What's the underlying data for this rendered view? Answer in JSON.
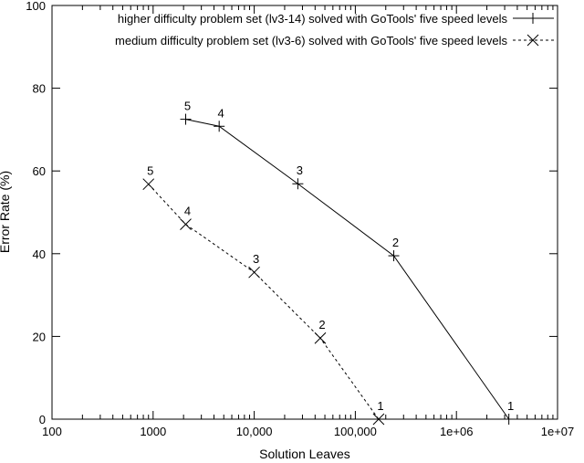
{
  "chart_data": {
    "type": "line",
    "xlabel": "Solution Leaves",
    "ylabel": "Error Rate (%)",
    "xscale": "log",
    "xlim": [
      100,
      10000000
    ],
    "ylim": [
      0,
      100
    ],
    "x_tick_labels": [
      "100",
      "1000",
      "10,000",
      "100,000",
      "1e+06",
      "1e+07"
    ],
    "x_tick_values": [
      100,
      1000,
      10000,
      100000,
      1000000,
      10000000
    ],
    "y_tick_labels": [
      "0",
      "20",
      "40",
      "60",
      "80",
      "100"
    ],
    "y_tick_values": [
      0,
      20,
      40,
      60,
      80,
      100
    ],
    "legend_position": "top-right",
    "series": [
      {
        "name": "higher difficulty problem set (lv3-14) solved with GoTools' five speed levels",
        "line_style": "solid",
        "marker": "plus",
        "points": [
          {
            "x": 2100,
            "y": 72.5,
            "label": "5"
          },
          {
            "x": 4500,
            "y": 70.8,
            "label": "4"
          },
          {
            "x": 27000,
            "y": 56.9,
            "label": "3"
          },
          {
            "x": 240000,
            "y": 39.5,
            "label": "2"
          },
          {
            "x": 3300000,
            "y": 0,
            "label": "1"
          }
        ]
      },
      {
        "name": "medium difficulty problem set (lv3-6) solved with GoTools' five speed levels",
        "line_style": "dashed",
        "marker": "x",
        "points": [
          {
            "x": 900,
            "y": 56.8,
            "label": "5"
          },
          {
            "x": 2100,
            "y": 47.1,
            "label": "4"
          },
          {
            "x": 10000,
            "y": 35.5,
            "label": "3"
          },
          {
            "x": 45000,
            "y": 19.6,
            "label": "2"
          },
          {
            "x": 170000,
            "y": 0,
            "label": "1"
          }
        ]
      }
    ]
  }
}
